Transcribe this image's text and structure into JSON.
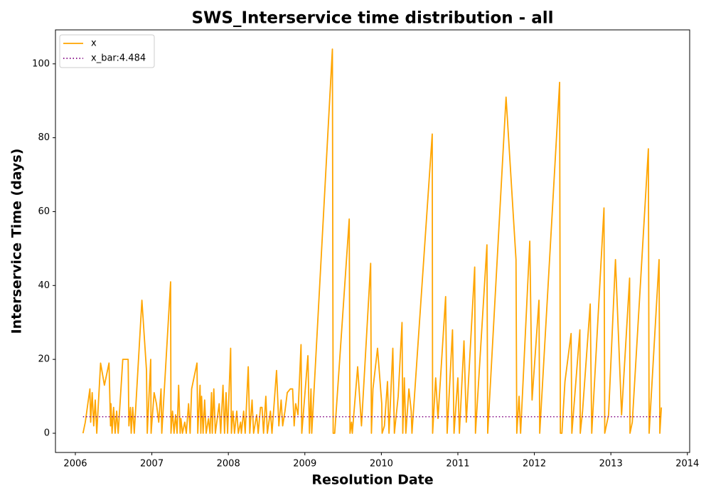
{
  "chart_data": {
    "type": "line",
    "title": "SWS_Interservice time distribution - all",
    "xlabel": "Resolution Date",
    "ylabel": "Interservice Time (days)",
    "xlim": [
      2005.74,
      2014.03
    ],
    "xticks": [
      2006,
      2007,
      2008,
      2009,
      2010,
      2011,
      2012,
      2013,
      2014
    ],
    "ylim": [
      -5.2,
      109.2
    ],
    "yticks": [
      0,
      20,
      40,
      60,
      80,
      100
    ],
    "grid": false,
    "legend": "upper left",
    "series": [
      {
        "name": "x",
        "color": "#ffa500",
        "style": "solid",
        "x": [
          2006.1,
          2006.13,
          2006.19,
          2006.2,
          2006.22,
          2006.24,
          2006.26,
          2006.28,
          2006.33,
          2006.38,
          2006.44,
          2006.46,
          2006.465,
          2006.48,
          2006.5,
          2006.52,
          2006.54,
          2006.56,
          2006.62,
          2006.69,
          2006.7,
          2006.72,
          2006.73,
          2006.75,
          2006.77,
          2006.87,
          2006.93,
          2006.94,
          2006.985,
          2006.99,
          2007.03,
          2007.06,
          2007.09,
          2007.12,
          2007.13,
          2007.245,
          2007.25,
          2007.27,
          2007.29,
          2007.31,
          2007.33,
          2007.35,
          2007.37,
          2007.38,
          2007.4,
          2007.43,
          2007.45,
          2007.48,
          2007.5,
          2007.52,
          2007.59,
          2007.6,
          2007.63,
          2007.64,
          2007.65,
          2007.67,
          2007.69,
          2007.71,
          2007.74,
          2007.76,
          2007.78,
          2007.79,
          2007.81,
          2007.83,
          2007.88,
          2007.9,
          2007.93,
          2007.95,
          2007.97,
          2007.99,
          2008.03,
          2008.04,
          2008.06,
          2008.08,
          2008.11,
          2008.13,
          2008.16,
          2008.17,
          2008.2,
          2008.22,
          2008.26,
          2008.28,
          2008.31,
          2008.33,
          2008.37,
          2008.39,
          2008.42,
          2008.44,
          2008.46,
          2008.49,
          2008.51,
          2008.55,
          2008.57,
          2008.63,
          2008.66,
          2008.69,
          2008.71,
          2008.74,
          2008.77,
          2008.81,
          2008.84,
          2008.86,
          2008.88,
          2008.91,
          2008.95,
          2008.96,
          2009.04,
          2009.06,
          2009.08,
          2009.09,
          2009.36,
          2009.37,
          2009.39,
          2009.58,
          2009.59,
          2009.61,
          2009.62,
          2009.69,
          2009.74,
          2009.86,
          2009.87,
          2009.89,
          2009.95,
          2010.005,
          2010.01,
          2010.04,
          2010.08,
          2010.1,
          2010.15,
          2010.17,
          2010.22,
          2010.27,
          2010.28,
          2010.3,
          2010.32,
          2010.36,
          2010.39,
          2010.4,
          2010.665,
          2010.67,
          2010.71,
          2010.74,
          2010.84,
          2010.86,
          2010.93,
          2010.95,
          2011.0,
          2011.02,
          2011.08,
          2011.11,
          2011.22,
          2011.23,
          2011.38,
          2011.39,
          2011.63,
          2011.76,
          2011.77,
          2011.8,
          2011.82,
          2011.94,
          2011.97,
          2012.06,
          2012.07,
          2012.33,
          2012.34,
          2012.36,
          2012.4,
          2012.48,
          2012.49,
          2012.595,
          2012.6,
          2012.63,
          2012.73,
          2012.75,
          2012.91,
          2012.92,
          2012.97,
          2013.06,
          2013.14,
          2013.245,
          2013.25,
          2013.28,
          2013.49,
          2013.5,
          2013.63,
          2013.64,
          2013.66
        ],
        "values": [
          0,
          3,
          12,
          3,
          11,
          2,
          9,
          0,
          19,
          13,
          19,
          2,
          8,
          0,
          7,
          0,
          6,
          0,
          20,
          20,
          2,
          7,
          0,
          7,
          0,
          36,
          17,
          0,
          20,
          0,
          11,
          8,
          3,
          12,
          0,
          41,
          0,
          6,
          0,
          5,
          0,
          13,
          0,
          4,
          0,
          3,
          0,
          8,
          0,
          12,
          19,
          0,
          13,
          0,
          10,
          0,
          9,
          0,
          4,
          0,
          11,
          0,
          12,
          0,
          8,
          0,
          13,
          0,
          11,
          0,
          23,
          0,
          6,
          0,
          6,
          0,
          3,
          0,
          6,
          0,
          18,
          0,
          9,
          0,
          5,
          0,
          7,
          7,
          0,
          10,
          0,
          6,
          0,
          17,
          2,
          9,
          2,
          6,
          11,
          12,
          12,
          2,
          8,
          5,
          24,
          0,
          21,
          0,
          12,
          0,
          104,
          0,
          0,
          58,
          0,
          3,
          0,
          18,
          2,
          46,
          0,
          12,
          23,
          8,
          0,
          2,
          14,
          0,
          23,
          0,
          10,
          30,
          0,
          15,
          0,
          12,
          6,
          0,
          81,
          0,
          15,
          4,
          37,
          0,
          28,
          0,
          15,
          0,
          25,
          3,
          45,
          0,
          51,
          0,
          91,
          47,
          0,
          10,
          0,
          52,
          9,
          36,
          0,
          95,
          0,
          0,
          14,
          27,
          0,
          28,
          0,
          6,
          35,
          0,
          61,
          0,
          5,
          47,
          5,
          42,
          0,
          3,
          77,
          0,
          47,
          0,
          7
        ]
      },
      {
        "name": "x_bar:4.484",
        "color": "#800080",
        "style": "dotted",
        "x": [
          2006.1,
          2013.66
        ],
        "values": [
          4.484,
          4.484
        ]
      }
    ]
  }
}
